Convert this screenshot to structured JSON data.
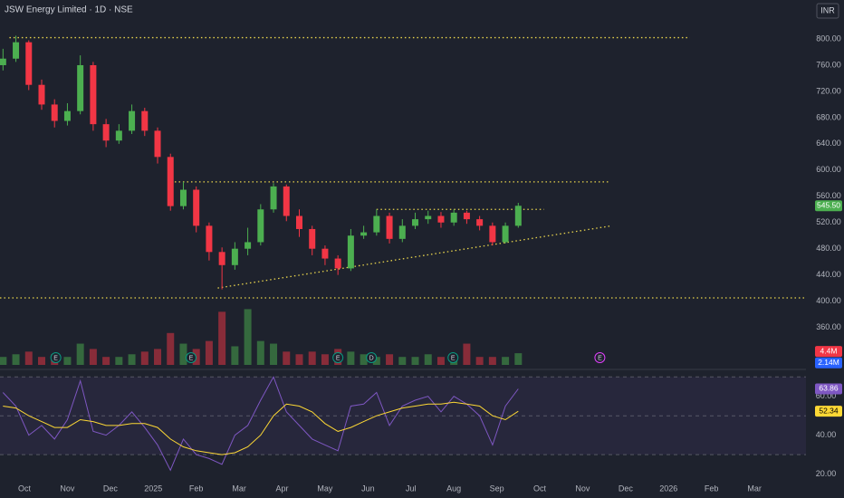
{
  "chart_data": {
    "type": "candlestick",
    "title": "JSW Energy Limited · 1D · NSE",
    "currency": "INR",
    "x": [
      -0.5,
      -0.2,
      0.1,
      0.4,
      0.7,
      1.0,
      1.3,
      1.6,
      1.9,
      2.2,
      2.5,
      2.8,
      3.1,
      3.4,
      3.7,
      4.0,
      4.3,
      4.6,
      4.9,
      5.2,
      5.5,
      5.8,
      6.1,
      6.4,
      6.7,
      7.0,
      7.3,
      7.6,
      7.9,
      8.2,
      8.5,
      8.8,
      9.1,
      9.4,
      9.7,
      10.0,
      10.3,
      10.6,
      10.9,
      11.2,
      11.5
    ],
    "open": [
      760,
      770,
      795,
      730,
      700,
      675,
      690,
      760,
      670,
      645,
      660,
      690,
      660,
      620,
      545,
      570,
      515,
      475,
      455,
      480,
      490,
      540,
      575,
      530,
      510,
      480,
      465,
      450,
      500,
      505,
      530,
      495,
      515,
      525,
      530,
      520,
      535,
      525,
      515,
      490,
      515
    ],
    "high": [
      785,
      805,
      798,
      738,
      708,
      702,
      775,
      765,
      678,
      670,
      700,
      695,
      665,
      625,
      582,
      575,
      520,
      482,
      490,
      512,
      548,
      580,
      578,
      540,
      515,
      485,
      470,
      510,
      515,
      540,
      535,
      525,
      535,
      538,
      536,
      540,
      538,
      530,
      520,
      520,
      550
    ],
    "low": [
      752,
      765,
      722,
      692,
      665,
      668,
      685,
      660,
      635,
      640,
      655,
      652,
      610,
      538,
      540,
      505,
      462,
      418,
      448,
      470,
      485,
      535,
      522,
      498,
      470,
      455,
      440,
      446,
      495,
      500,
      488,
      490,
      510,
      518,
      512,
      515,
      518,
      508,
      485,
      488,
      512
    ],
    "close": [
      770,
      795,
      730,
      700,
      675,
      690,
      760,
      670,
      645,
      660,
      690,
      660,
      620,
      545,
      570,
      515,
      475,
      455,
      480,
      490,
      540,
      575,
      530,
      510,
      480,
      465,
      450,
      500,
      505,
      530,
      495,
      515,
      525,
      530,
      520,
      535,
      525,
      515,
      490,
      515,
      545.5
    ],
    "up_color": "#4caf50",
    "down_color": "#f23645",
    "last": {
      "value": 545.5,
      "label": "545.50"
    },
    "xlim": [
      -0.57,
      18.2
    ],
    "xticks": [
      {
        "value": 0,
        "label": "Oct"
      },
      {
        "value": 1,
        "label": "Nov"
      },
      {
        "value": 2,
        "label": "Dec"
      },
      {
        "value": 3,
        "label": "2025"
      },
      {
        "value": 4,
        "label": "Feb"
      },
      {
        "value": 5,
        "label": "Mar"
      },
      {
        "value": 6,
        "label": "Apr"
      },
      {
        "value": 7,
        "label": "May"
      },
      {
        "value": 8,
        "label": "Jun"
      },
      {
        "value": 9,
        "label": "Jul"
      },
      {
        "value": 10,
        "label": "Aug"
      },
      {
        "value": 11,
        "label": "Sep"
      },
      {
        "value": 12,
        "label": "Oct"
      },
      {
        "value": 13,
        "label": "Nov"
      },
      {
        "value": 14,
        "label": "Dec"
      },
      {
        "value": 15,
        "label": "2026"
      },
      {
        "value": 16,
        "label": "Feb"
      },
      {
        "value": 17,
        "label": "Mar"
      }
    ],
    "ylim": [
      300,
      818
    ],
    "yticks": [
      {
        "value": 360,
        "label": "360.00"
      },
      {
        "value": 400,
        "label": "400.00"
      },
      {
        "value": 440,
        "label": "440.00"
      },
      {
        "value": 480,
        "label": "480.00"
      },
      {
        "value": 520,
        "label": "520.00"
      },
      {
        "value": 560,
        "label": "560.00"
      },
      {
        "value": 600,
        "label": "600.00"
      },
      {
        "value": 640,
        "label": "640.00"
      },
      {
        "value": 680,
        "label": "680.00"
      },
      {
        "value": 720,
        "label": "720.00"
      },
      {
        "value": 760,
        "label": "760.00"
      },
      {
        "value": 800,
        "label": "800.00"
      }
    ],
    "levels": [
      {
        "from": -0.35,
        "to": 15.5,
        "value": 802
      },
      {
        "from": 3.5,
        "to": 13.6,
        "value": 582
      },
      {
        "from": -0.57,
        "to": 18.2,
        "value": 405
      },
      {
        "from": 8.2,
        "to": 12.1,
        "value": 540
      }
    ],
    "trendline": {
      "from": [
        4.5,
        420
      ],
      "to": [
        13.68,
        515
      ]
    },
    "level_color": "#e8d44d",
    "volume": {
      "values": [
        3,
        4,
        5,
        3,
        4,
        3,
        8,
        6,
        3,
        3,
        4,
        5,
        6,
        12,
        8,
        6,
        9,
        20,
        7,
        21,
        9,
        8,
        5,
        4,
        5,
        4,
        6,
        5,
        4,
        3,
        4,
        3,
        3,
        4,
        3,
        3,
        8,
        3,
        3,
        3,
        4.4
      ],
      "ylim": [
        0,
        30
      ],
      "last": {
        "value": 4.4,
        "label": "4.4M"
      },
      "ma": {
        "value": 2.14,
        "label": "2.14M"
      },
      "ma_color": "#2962ff"
    },
    "events": [
      {
        "x": 0.73,
        "label": "E"
      },
      {
        "x": 3.88,
        "label": "E"
      },
      {
        "x": 7.3,
        "label": "E"
      },
      {
        "x": 8.08,
        "label": "D"
      },
      {
        "x": 9.98,
        "label": "E"
      },
      {
        "x": 13.4,
        "label": "E"
      }
    ],
    "rsi": {
      "values": [
        62,
        55,
        40,
        45,
        38,
        48,
        68,
        42,
        40,
        45,
        52,
        44,
        35,
        22,
        38,
        30,
        28,
        25,
        40,
        45,
        58,
        70,
        52,
        45,
        38,
        35,
        32,
        55,
        56,
        62,
        45,
        55,
        58,
        60,
        52,
        60,
        56,
        50,
        35,
        55,
        63.86
      ],
      "ma": [
        55,
        54,
        50,
        47,
        44,
        44,
        48,
        47,
        45,
        45,
        46,
        46,
        44,
        38,
        34,
        32,
        31,
        30,
        31,
        34,
        40,
        50,
        56,
        55,
        52,
        46,
        42,
        44,
        47,
        50,
        52,
        54,
        55,
        56,
        56,
        57,
        56,
        55,
        50,
        48,
        52.34
      ],
      "color": "#7e57c2",
      "ma_color": "#fdd835",
      "ylim": [
        10,
        72
      ],
      "yticks": [
        {
          "value": 20,
          "label": "20.00"
        },
        {
          "value": 40,
          "label": "40.00"
        },
        {
          "value": 60,
          "label": "60.00"
        }
      ],
      "bands": [
        70,
        50,
        30
      ]
    }
  }
}
